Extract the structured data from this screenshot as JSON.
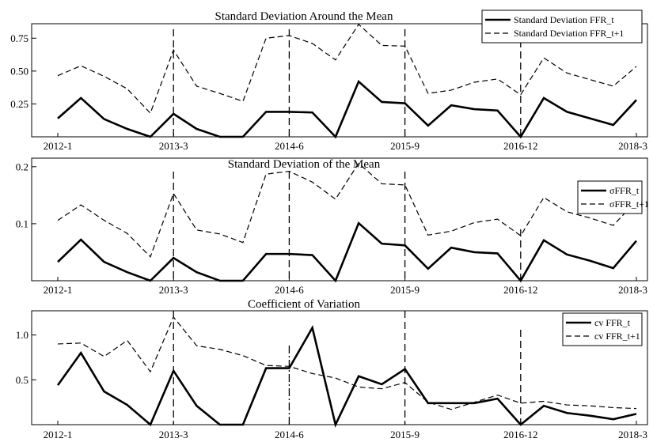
{
  "chart_data": [
    {
      "type": "line",
      "title": "Standard Deviation Around the Mean",
      "xlabel": "",
      "ylabel": "",
      "x_tick_labels": [
        "2012-1",
        "2013-3",
        "2014-6",
        "2015-9",
        "2016-12",
        "2018-3"
      ],
      "y_ticks": [
        0.25,
        0.5,
        0.75
      ],
      "y_tick_labels": [
        "0.25",
        "0.50",
        "0.75"
      ],
      "ylim": [
        0,
        0.86
      ],
      "grid": false,
      "legend_position": "top-right",
      "vertical_markers": [
        "2013-3",
        "2014-6",
        "2015-9",
        "2016-12"
      ],
      "series": [
        {
          "name": "Standard Deviation FFR_t",
          "style": "solid",
          "values": [
            0.14,
            0.295,
            0.135,
            0.06,
            0.0,
            0.175,
            0.06,
            0.0,
            0.0,
            0.19,
            0.19,
            0.185,
            0.0,
            0.42,
            0.265,
            0.255,
            0.085,
            0.24,
            0.21,
            0.2,
            0.0,
            0.295,
            0.19,
            0.14,
            0.09,
            0.28
          ]
        },
        {
          "name": "Standard Deviation FFR_t+1",
          "style": "dashed",
          "values": [
            0.465,
            0.54,
            0.46,
            0.365,
            0.18,
            0.66,
            0.385,
            0.33,
            0.27,
            0.75,
            0.77,
            0.71,
            0.585,
            0.855,
            0.695,
            0.69,
            0.33,
            0.355,
            0.415,
            0.44,
            0.32,
            0.6,
            0.485,
            0.435,
            0.385,
            0.535
          ]
        }
      ]
    },
    {
      "type": "line",
      "title": "Standard Deviation of the Mean",
      "xlabel": "",
      "ylabel": "",
      "x_tick_labels": [
        "2012-1",
        "2013-3",
        "2014-6",
        "2015-9",
        "2016-12",
        "2018-3"
      ],
      "y_ticks": [
        0.1,
        0.2
      ],
      "y_tick_labels": [
        "0.1",
        "0.2"
      ],
      "ylim": [
        0,
        0.215
      ],
      "grid": false,
      "legend_position": "top-right",
      "vertical_markers": [
        "2013-3",
        "2014-6",
        "2015-9",
        "2016-12"
      ],
      "series": [
        {
          "name": "σFFR_t",
          "style": "solid",
          "values": [
            0.033,
            0.072,
            0.033,
            0.015,
            0.0,
            0.04,
            0.015,
            0.0,
            0.0,
            0.047,
            0.047,
            0.045,
            0.0,
            0.101,
            0.065,
            0.062,
            0.021,
            0.058,
            0.05,
            0.048,
            0.0,
            0.071,
            0.046,
            0.035,
            0.022,
            0.07
          ]
        },
        {
          "name": "σFFR_t+1",
          "style": "dashed",
          "values": [
            0.106,
            0.133,
            0.106,
            0.083,
            0.042,
            0.153,
            0.089,
            0.082,
            0.067,
            0.187,
            0.192,
            0.173,
            0.143,
            0.206,
            0.17,
            0.168,
            0.08,
            0.087,
            0.102,
            0.108,
            0.079,
            0.146,
            0.121,
            0.11,
            0.097,
            0.14
          ]
        }
      ]
    },
    {
      "type": "line",
      "title": "Coefficient of Variation",
      "xlabel": "",
      "ylabel": "",
      "x_tick_labels": [
        "2012-1",
        "2013-3",
        "2014-6",
        "2015-9",
        "2016-12",
        "2018-3"
      ],
      "y_ticks": [
        0.5,
        1.0
      ],
      "y_tick_labels": [
        "0.5",
        "1.0"
      ],
      "ylim": [
        0,
        1.27
      ],
      "grid": false,
      "legend_position": "top-right",
      "vertical_markers": [
        "2013-3",
        "2014-6",
        "2015-9",
        "2016-12"
      ],
      "series": [
        {
          "name": "cv FFR_t",
          "style": "solid",
          "values": [
            0.44,
            0.8,
            0.37,
            0.22,
            0.0,
            0.6,
            0.21,
            0.0,
            0.0,
            0.63,
            0.63,
            1.08,
            0.0,
            0.54,
            0.45,
            0.62,
            0.24,
            0.24,
            0.24,
            0.29,
            0.0,
            0.21,
            0.13,
            0.1,
            0.06,
            0.12
          ]
        },
        {
          "name": "cv FFR_t+1",
          "style": "dashed",
          "values": [
            0.9,
            0.91,
            0.76,
            0.94,
            0.59,
            1.2,
            0.88,
            0.84,
            0.77,
            0.66,
            0.65,
            0.57,
            0.52,
            0.42,
            0.4,
            0.47,
            0.25,
            0.17,
            0.25,
            0.33,
            0.24,
            0.26,
            0.22,
            0.21,
            0.19,
            0.18
          ]
        }
      ]
    }
  ]
}
